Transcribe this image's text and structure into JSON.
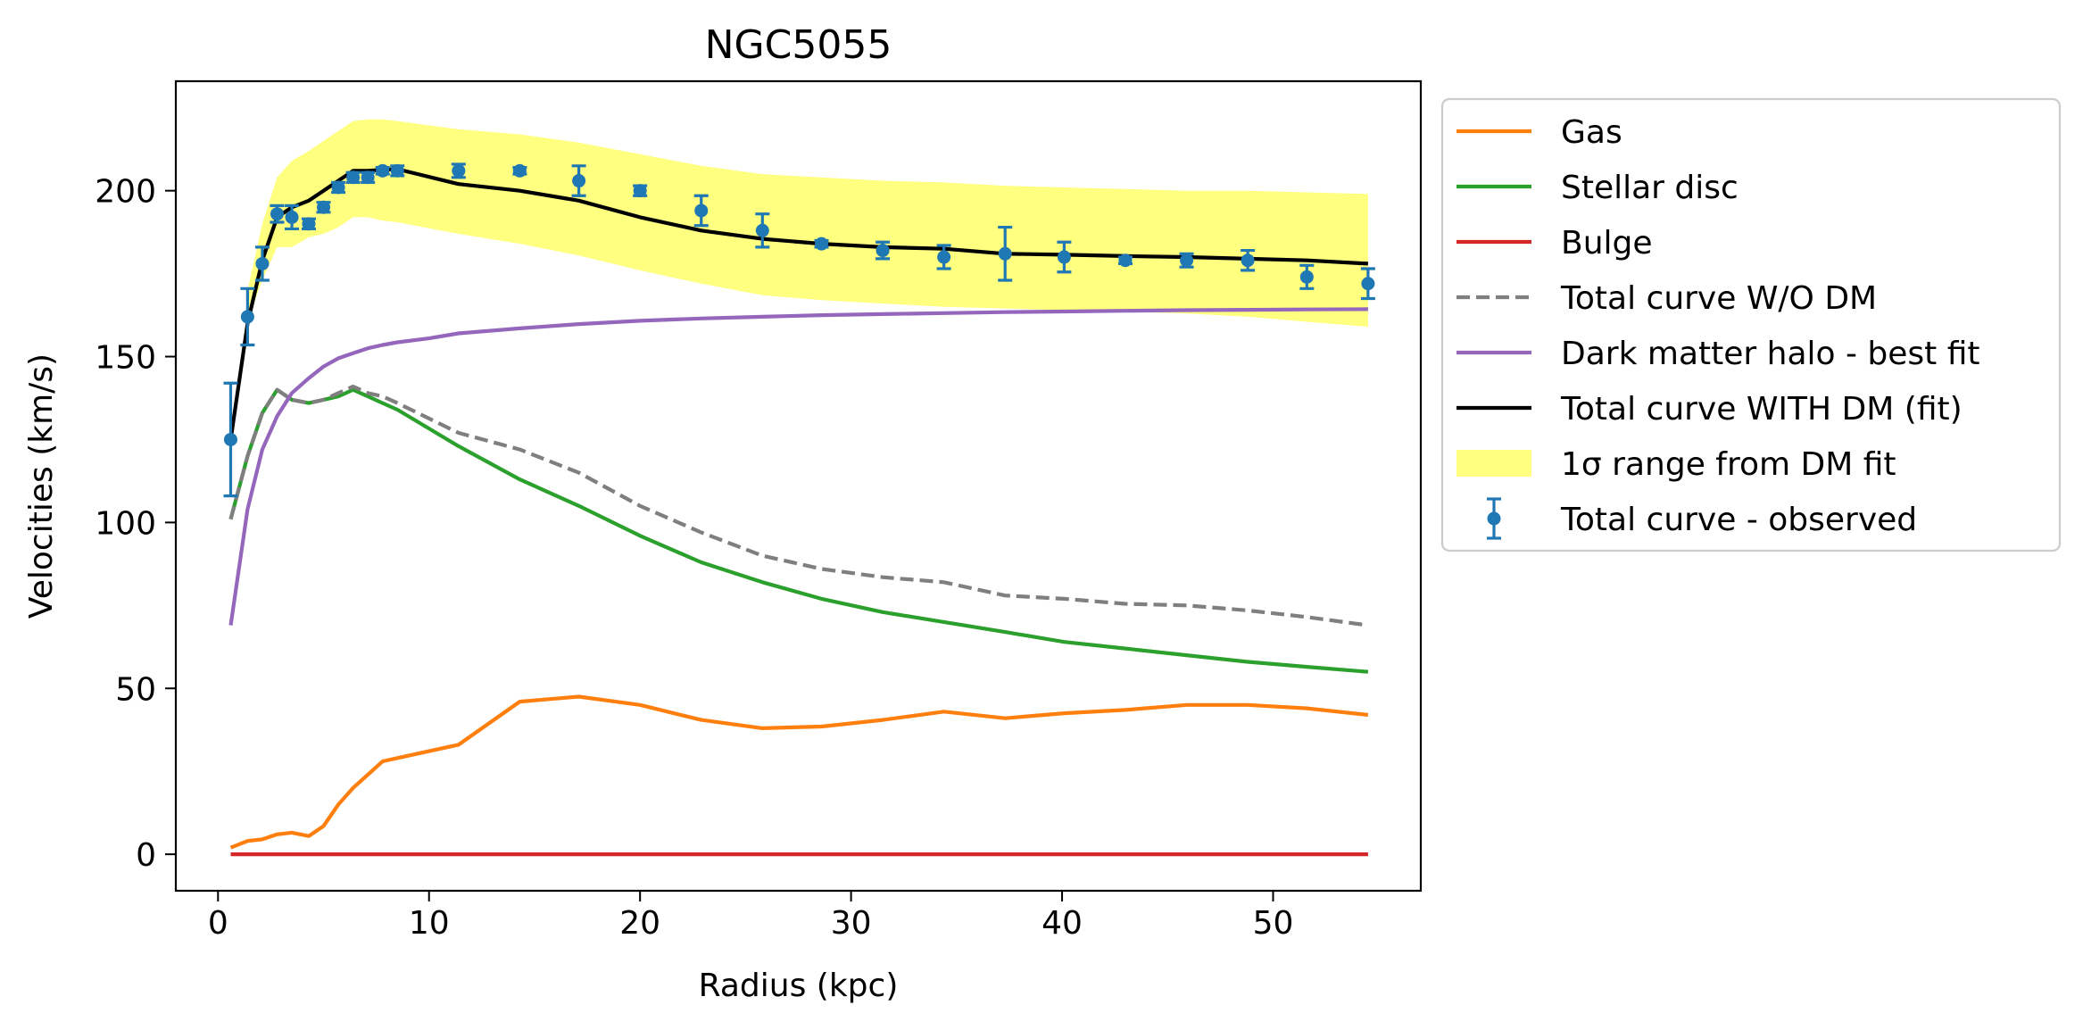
{
  "chart_data": {
    "type": "line",
    "title": "NGC5055",
    "xlabel": "Radius (kpc)",
    "ylabel": "Velocities (km/s)",
    "xlim": [
      -2,
      57
    ],
    "ylim": [
      -11,
      233
    ],
    "xticks": [
      0,
      10,
      20,
      30,
      40,
      50
    ],
    "yticks": [
      0,
      50,
      100,
      150,
      200
    ],
    "grid": false,
    "legend_position": "outside right, top",
    "series": [
      {
        "name": "Gas",
        "color": "#ff7f0e",
        "style": "solid",
        "x": [
          0.6,
          1.4,
          2.1,
          2.8,
          3.5,
          4.3,
          5.0,
          5.7,
          6.4,
          7.1,
          7.8,
          8.5,
          11.4,
          14.3,
          17.1,
          20.0,
          22.9,
          25.8,
          28.6,
          31.5,
          34.4,
          37.3,
          40.1,
          43.0,
          45.9,
          48.8,
          51.6,
          54.5
        ],
        "y": [
          2,
          4,
          4.5,
          6,
          6.5,
          5.5,
          8.5,
          15,
          20,
          24,
          28,
          29,
          33,
          46,
          47.5,
          45,
          40.5,
          38,
          38.5,
          40.5,
          43,
          41,
          42.5,
          43.5,
          45,
          45,
          44,
          42
        ]
      },
      {
        "name": "Stellar disc",
        "color": "#2ca02c",
        "style": "solid",
        "x": [
          0.6,
          1.4,
          2.1,
          2.8,
          3.5,
          4.3,
          5.0,
          5.7,
          6.4,
          7.1,
          7.8,
          8.5,
          11.4,
          14.3,
          17.1,
          20.0,
          22.9,
          25.8,
          28.6,
          31.5,
          34.4,
          37.3,
          40.1,
          43.0,
          45.9,
          48.8,
          51.6,
          54.5
        ],
        "y": [
          101,
          120,
          133,
          140,
          137,
          136,
          137,
          138,
          140,
          138,
          136,
          134,
          123,
          113,
          105,
          96,
          88,
          82,
          77,
          73,
          70,
          67,
          64,
          62,
          60,
          58,
          56.5,
          55
        ]
      },
      {
        "name": "Bulge",
        "color": "#d62728",
        "style": "solid",
        "x": [
          0.6,
          54.5
        ],
        "y": [
          0,
          0
        ]
      },
      {
        "name": "Total curve W/O DM",
        "color": "#7f7f7f",
        "style": "dashed",
        "x": [
          0.6,
          1.4,
          2.1,
          2.8,
          3.5,
          4.3,
          5.0,
          5.7,
          6.4,
          7.1,
          7.8,
          8.5,
          11.4,
          14.3,
          17.1,
          20.0,
          22.9,
          25.8,
          28.6,
          31.5,
          34.4,
          37.3,
          40.1,
          43.0,
          45.9,
          48.8,
          51.6,
          54.5
        ],
        "y": [
          101,
          120,
          133,
          140,
          137,
          136,
          137,
          139,
          141,
          139,
          138,
          136,
          127,
          122,
          115,
          105,
          97,
          90,
          86,
          83.5,
          82,
          78,
          77,
          75.5,
          75,
          73.5,
          71.5,
          69
        ]
      },
      {
        "name": "Dark matter halo - best fit",
        "color": "#9467bd",
        "style": "solid",
        "x": [
          0.6,
          1.4,
          2.1,
          2.8,
          3.5,
          4.3,
          5.0,
          5.7,
          6.4,
          7.1,
          7.8,
          8.5,
          10,
          11.4,
          14.3,
          17.1,
          20.0,
          22.9,
          25.8,
          28.6,
          31.5,
          34.4,
          37.3,
          40.1,
          43.0,
          45.9,
          48.8,
          51.6,
          54.5
        ],
        "y": [
          69,
          104,
          122,
          132,
          139,
          143.5,
          147,
          149.5,
          151,
          152.5,
          153.5,
          154.3,
          155.5,
          157,
          158.5,
          159.8,
          160.8,
          161.5,
          162,
          162.5,
          162.8,
          163.1,
          163.4,
          163.6,
          163.8,
          164,
          164.1,
          164.2,
          164.3
        ]
      },
      {
        "name": "Total curve WITH DM (fit)",
        "color": "#000000",
        "style": "solid",
        "x": [
          0.6,
          1.4,
          2.1,
          2.8,
          3.5,
          4.3,
          5.0,
          5.7,
          6.4,
          7.1,
          7.8,
          8.5,
          11.4,
          14.3,
          17.1,
          20.0,
          22.9,
          25.8,
          28.6,
          31.5,
          34.4,
          37.3,
          40.1,
          43.0,
          45.9,
          48.8,
          51.6,
          54.5
        ],
        "y": [
          125,
          160,
          179,
          192,
          195,
          197,
          200,
          203,
          206,
          206,
          206.3,
          206.5,
          202,
          200,
          197,
          192,
          188,
          185.5,
          184,
          183,
          182.5,
          181,
          180.7,
          180.3,
          180,
          179.5,
          179,
          178
        ]
      }
    ],
    "band": {
      "name": "1$\\sigma$ range from DM fit",
      "color": "#ffff80",
      "x": [
        1.4,
        2.1,
        2.8,
        3.5,
        4.3,
        5.0,
        5.7,
        6.4,
        7.1,
        7.8,
        8.5,
        11.4,
        14.3,
        17.1,
        20.0,
        22.9,
        25.8,
        28.6,
        31.5,
        34.4,
        37.3,
        40.1,
        43.0,
        45.9,
        48.8,
        51.6,
        54.5
      ],
      "upper": [
        170,
        190,
        204,
        209,
        212,
        215,
        218,
        221,
        221.5,
        221.5,
        221,
        218.5,
        217,
        214.5,
        211,
        207.5,
        205,
        204,
        203,
        202.5,
        201.5,
        201,
        200.5,
        200,
        200,
        199.5,
        199
      ],
      "lower": [
        161,
        173,
        183,
        183,
        186,
        187,
        189,
        192,
        192,
        191,
        190.5,
        187,
        184,
        180.5,
        176,
        172,
        168.5,
        167,
        166,
        165,
        164.5,
        164,
        163.5,
        163,
        162,
        160.5,
        159
      ]
    },
    "observed": {
      "name": "Total curve - observed",
      "color": "#1f77b4",
      "x": [
        0.6,
        1.4,
        2.1,
        2.8,
        3.5,
        4.3,
        5.0,
        5.7,
        6.4,
        7.1,
        7.8,
        8.5,
        11.4,
        14.3,
        17.1,
        20.0,
        22.9,
        25.8,
        28.6,
        31.5,
        34.4,
        37.3,
        40.1,
        43.0,
        45.9,
        48.8,
        51.6,
        54.5
      ],
      "y": [
        125,
        162,
        178,
        193,
        192,
        190,
        195,
        201,
        204,
        204,
        206,
        206,
        206,
        206,
        203,
        200,
        194,
        188,
        184,
        182,
        180,
        181,
        180,
        179,
        179,
        179,
        174,
        172
      ],
      "err": [
        17,
        8.5,
        5,
        2.5,
        3.5,
        1.5,
        1.5,
        1.5,
        1.5,
        1.5,
        1,
        1.5,
        2,
        1,
        4.5,
        1.5,
        4.5,
        5,
        1,
        2.5,
        3.5,
        8,
        4.5,
        1,
        2,
        3,
        3.5,
        4.5
      ]
    }
  },
  "legend": {
    "entries": [
      {
        "label": "Gas",
        "kind": "line",
        "color": "#ff7f0e",
        "dash": ""
      },
      {
        "label": "Stellar disc",
        "kind": "line",
        "color": "#2ca02c",
        "dash": ""
      },
      {
        "label": "Bulge",
        "kind": "line",
        "color": "#d62728",
        "dash": ""
      },
      {
        "label": "Total curve W/O DM",
        "kind": "line",
        "color": "#7f7f7f",
        "dash": "dashed"
      },
      {
        "label": "Dark matter halo - best fit",
        "kind": "line",
        "color": "#9467bd",
        "dash": ""
      },
      {
        "label": "Total curve WITH DM (fit)",
        "kind": "line",
        "color": "#000000",
        "dash": ""
      },
      {
        "label": "1σ range from DM fit",
        "kind": "patch",
        "color": "#ffff80",
        "dash": ""
      },
      {
        "label": "Total curve - observed",
        "kind": "errorbar",
        "color": "#1f77b4",
        "dash": ""
      }
    ]
  }
}
